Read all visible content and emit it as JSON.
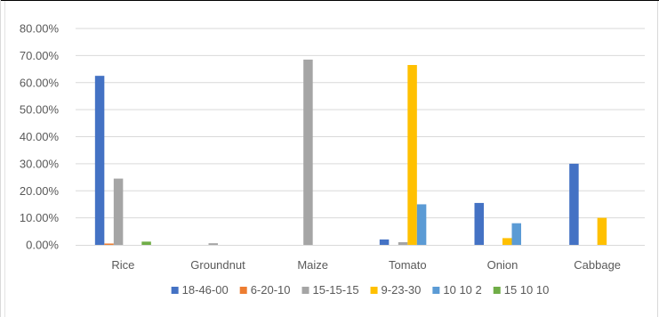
{
  "chart_data": {
    "type": "bar",
    "title": "",
    "xlabel": "",
    "ylabel": "",
    "categories": [
      "Rice",
      "Groundnut",
      "Maize",
      "Tomato",
      "Onion",
      "Cabbage"
    ],
    "ylim": [
      0,
      0.8
    ],
    "y_ticks": [
      "0.00%",
      "10.00%",
      "20.00%",
      "30.00%",
      "40.00%",
      "50.00%",
      "60.00%",
      "70.00%",
      "80.00%"
    ],
    "grid": true,
    "legend_position": "bottom",
    "series": [
      {
        "name": "18-46-00",
        "color": "#4472C4",
        "values": [
          0.625,
          0,
          0,
          0.02,
          0.155,
          0.3
        ]
      },
      {
        "name": "6-20-10",
        "color": "#ED7D31",
        "values": [
          0.005,
          0,
          0,
          0,
          0,
          0
        ]
      },
      {
        "name": "15-15-15",
        "color": "#A5A5A5",
        "values": [
          0.245,
          0.006,
          0.685,
          0.01,
          0,
          0
        ]
      },
      {
        "name": "9-23-30",
        "color": "#FFC000",
        "values": [
          0,
          0,
          0,
          0.665,
          0.025,
          0.1
        ]
      },
      {
        "name": "10 10 2",
        "color": "#5B9BD5",
        "values": [
          0,
          0,
          0,
          0.15,
          0.08,
          0
        ]
      },
      {
        "name": "15 10 10",
        "color": "#70AD47",
        "values": [
          0.012,
          0,
          0,
          0,
          0,
          0
        ]
      }
    ]
  }
}
